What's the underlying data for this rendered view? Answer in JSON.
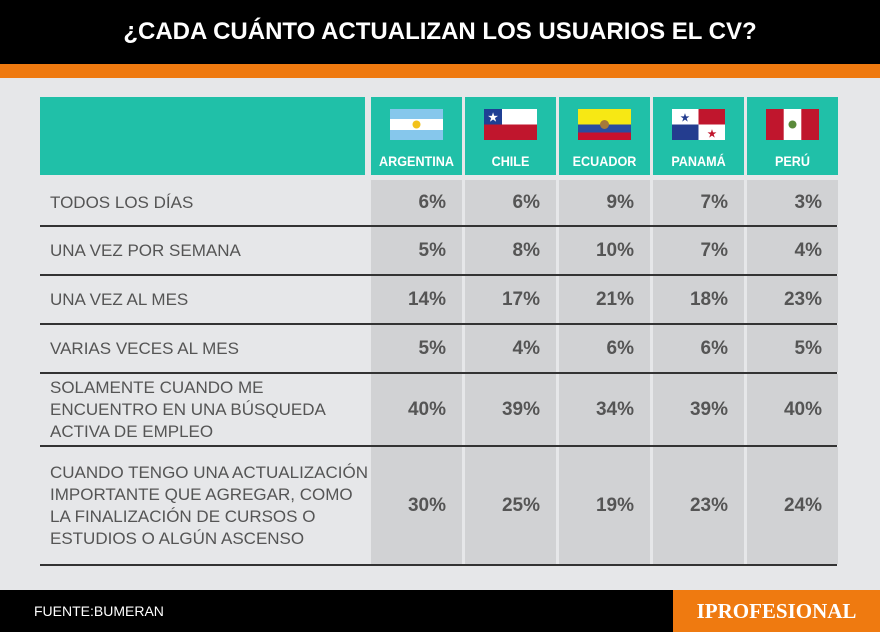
{
  "title": "¿CADA CUÁNTO ACTUALIZAN LOS USUARIOS EL CV?",
  "countries": [
    "ARGENTINA",
    "CHILE",
    "ECUADOR",
    "PANAMÁ",
    "PERÚ"
  ],
  "rows": [
    {
      "label": "TODOS LOS DÍAS",
      "values": [
        "6%",
        "6%",
        "9%",
        "7%",
        "3%"
      ]
    },
    {
      "label": "UNA VEZ POR SEMANA",
      "values": [
        "5%",
        "8%",
        "10%",
        "7%",
        "4%"
      ]
    },
    {
      "label": "UNA VEZ AL MES",
      "values": [
        "14%",
        "17%",
        "21%",
        "18%",
        "23%"
      ]
    },
    {
      "label": "VARIAS VECES AL MES",
      "values": [
        "5%",
        "4%",
        "6%",
        "6%",
        "5%"
      ]
    },
    {
      "label": "SOLAMENTE CUANDO ME ENCUENTRO EN UNA BÚSQUEDA ACTIVA DE EMPLEO",
      "values": [
        "40%",
        "39%",
        "34%",
        "39%",
        "40%"
      ]
    },
    {
      "label": "CUANDO TENGO UNA ACTUALIZACIÓN IMPORTANTE QUE AGREGAR, COMO LA FINALIZACIÓN DE CURSOS O ESTUDIOS O ALGÚN ASCENSO",
      "values": [
        "30%",
        "25%",
        "19%",
        "23%",
        "24%"
      ]
    }
  ],
  "footer": {
    "source": "FUENTE:BUMERAN",
    "brand": "IPROFESIONAL"
  },
  "chart_data": {
    "type": "table",
    "title": "¿CADA CUÁNTO ACTUALIZAN LOS USUARIOS EL CV?",
    "columns": [
      "ARGENTINA",
      "CHILE",
      "ECUADOR",
      "PANAMÁ",
      "PERÚ"
    ],
    "unit": "%"
  }
}
